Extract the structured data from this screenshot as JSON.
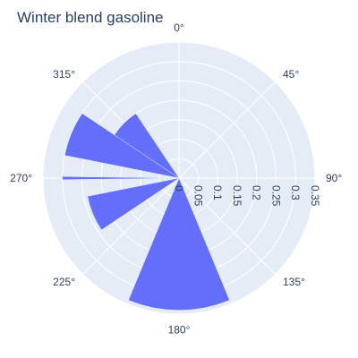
{
  "chart_data": {
    "type": "bar",
    "subtype": "polar-bar",
    "title": "Winter blend gasoline",
    "angular_axis": {
      "direction": "clockwise",
      "rotation": "0° at top",
      "ticks": [
        "0°",
        "45°",
        "90°",
        "135°",
        "180°",
        "225°",
        "270°",
        "315°"
      ]
    },
    "radial_axis": {
      "range": [
        0,
        0.35
      ],
      "tick_values": [
        0,
        0.05,
        0.1,
        0.15,
        0.2,
        0.25,
        0.3,
        0.35
      ],
      "tick_labels": [
        "0",
        "0.05",
        "0.1",
        "0.15",
        "0.2",
        "0.25",
        "0.3",
        "0.35"
      ],
      "label_position": "along 90° axis"
    },
    "grid": true,
    "bar_color": "#636efa",
    "background_color": "#e5ecf6",
    "grid_color": "#ffffff",
    "text_color": "#2a3f5f",
    "bars": [
      {
        "theta": 180.0,
        "r": 0.34,
        "width_deg": 45.0
      },
      {
        "theta": 247.5,
        "r": 0.24,
        "width_deg": 22.5
      },
      {
        "theta": 270.0,
        "r": 0.3,
        "width_deg": 1.5
      },
      {
        "theta": 292.5,
        "r": 0.3,
        "width_deg": 22.5
      },
      {
        "theta": 315.0,
        "r": 0.2,
        "width_deg": 22.5
      }
    ]
  }
}
